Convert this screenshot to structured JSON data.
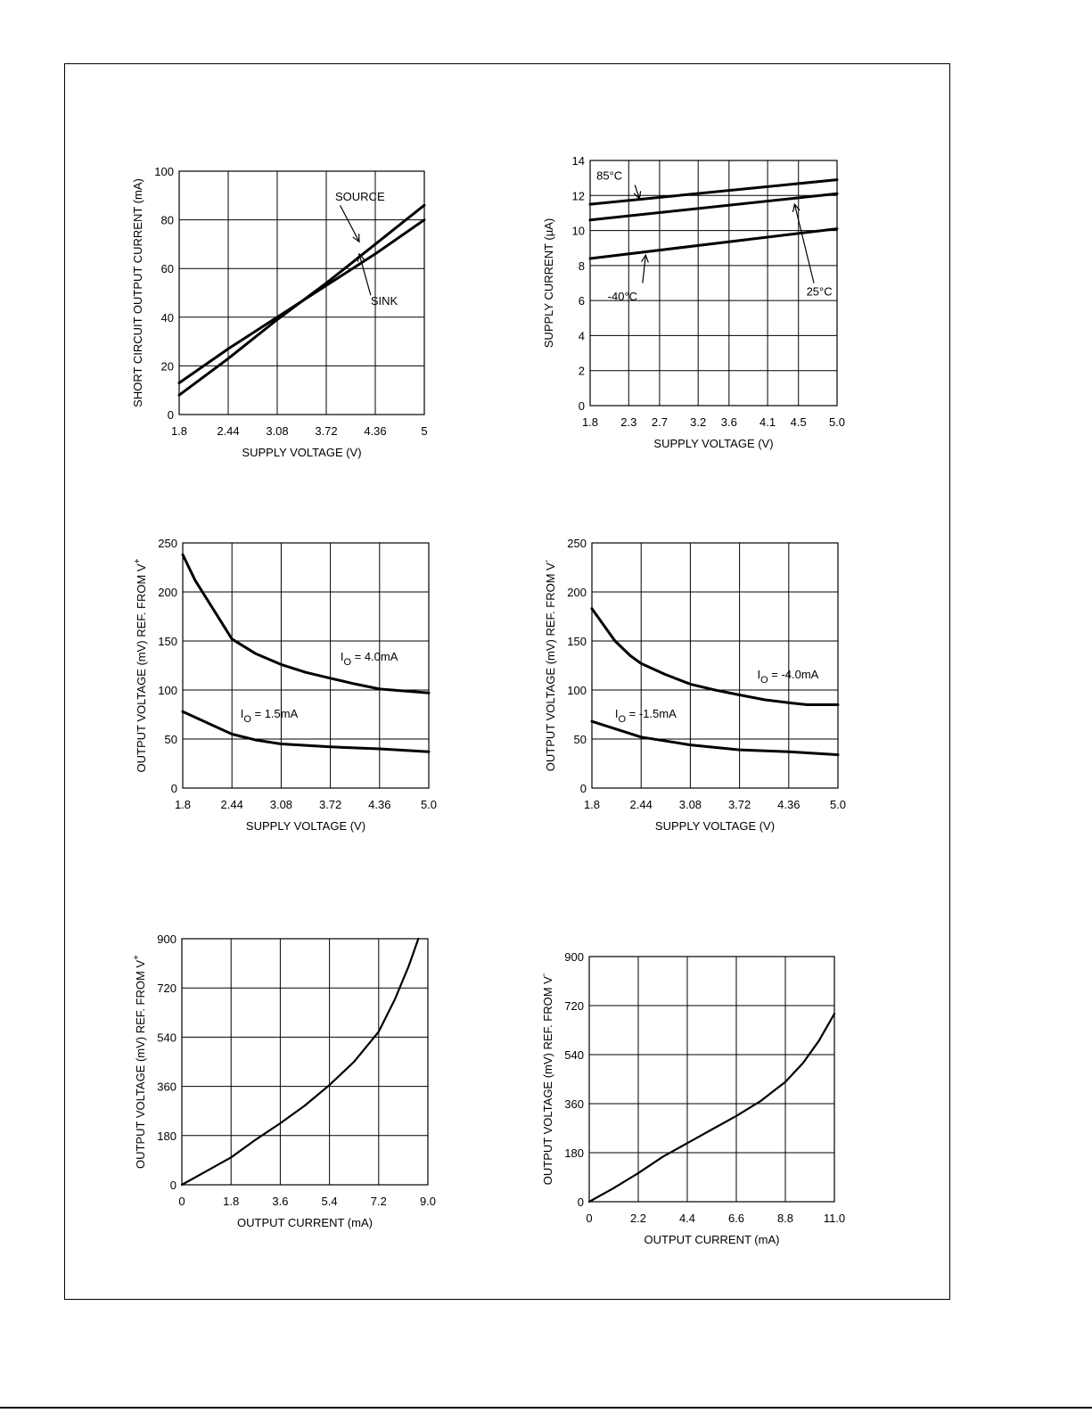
{
  "chart_data": [
    {
      "id": "c1",
      "type": "line",
      "xlabel": "SUPPLY VOLTAGE (V)",
      "ylabel": "SHORT CIRCUIT OUTPUT CURRENT (mA)",
      "x_ticks": [
        1.8,
        2.44,
        3.08,
        3.72,
        4.36,
        5
      ],
      "x_tick_labels": [
        "1.8",
        "2.44",
        "3.08",
        "3.72",
        "4.36",
        "5"
      ],
      "y_ticks": [
        0,
        20,
        40,
        60,
        80,
        100
      ],
      "y_tick_labels": [
        "0",
        "20",
        "40",
        "60",
        "80",
        "100"
      ],
      "xlim": [
        1.8,
        5
      ],
      "ylim": [
        0,
        100
      ],
      "grid": true,
      "series": [
        {
          "name": "SOURCE",
          "points": [
            [
              1.8,
              8
            ],
            [
              2.44,
              23
            ],
            [
              3.08,
              39
            ],
            [
              3.72,
              54
            ],
            [
              4.36,
              70
            ],
            [
              5,
              86
            ]
          ]
        },
        {
          "name": "SINK",
          "points": [
            [
              1.8,
              13
            ],
            [
              2.44,
              27
            ],
            [
              3.08,
              40
            ],
            [
              3.72,
              53
            ],
            [
              4.36,
              66
            ],
            [
              5,
              80
            ]
          ]
        }
      ],
      "annotations": [
        {
          "text": "SOURCE",
          "tx": 4.16,
          "ty": 88,
          "ax": 3.9,
          "ay": 86,
          "hx": 4.15,
          "hy": 71,
          "anchor": "middle"
        },
        {
          "text": "SINK",
          "tx": 4.3,
          "ty": 45,
          "ax": 4.3,
          "ay": 49,
          "hx": 4.15,
          "hy": 66,
          "anchor": "start"
        }
      ]
    },
    {
      "id": "c2",
      "type": "line",
      "xlabel": "SUPPLY VOLTAGE (V)",
      "ylabel": "SUPPLY CURRENT (µA)",
      "x_ticks": [
        1.8,
        2.3,
        2.7,
        3.2,
        3.6,
        4.1,
        4.5,
        5.0
      ],
      "x_tick_labels": [
        "1.8",
        "2.3",
        "2.7",
        "3.2",
        "3.6",
        "4.1",
        "4.5",
        "5.0"
      ],
      "y_ticks": [
        0,
        2,
        4,
        6,
        8,
        10,
        12,
        14
      ],
      "y_tick_labels": [
        "0",
        "2",
        "4",
        "6",
        "8",
        "10",
        "12",
        "14"
      ],
      "xlim": [
        1.8,
        5.0
      ],
      "ylim": [
        0,
        14
      ],
      "grid": true,
      "series": [
        {
          "name": "85°C",
          "points": [
            [
              1.8,
              11.5
            ],
            [
              5.0,
              12.9
            ]
          ]
        },
        {
          "name": "25°C",
          "points": [
            [
              1.8,
              10.6
            ],
            [
              5.0,
              12.1
            ]
          ]
        },
        {
          "name": "-40°C",
          "points": [
            [
              1.8,
              8.4
            ],
            [
              5.0,
              10.1
            ]
          ]
        }
      ],
      "annotations": [
        {
          "text": "85°C",
          "tx": 2.05,
          "ty": 12.9,
          "ax": 2.38,
          "ay": 12.6,
          "hx": 2.44,
          "hy": 11.8,
          "anchor": "middle"
        },
        {
          "text": "25°C",
          "tx": 4.77,
          "ty": 6.3,
          "ax": 4.7,
          "ay": 7.0,
          "hx": 4.45,
          "hy": 11.5,
          "anchor": "middle"
        },
        {
          "text": "-40°C",
          "tx": 2.22,
          "ty": 6.0,
          "ax": 2.48,
          "ay": 7.0,
          "hx": 2.52,
          "hy": 8.6,
          "anchor": "middle"
        }
      ]
    },
    {
      "id": "c3",
      "type": "line",
      "xlabel": "SUPPLY VOLTAGE (V)",
      "ylabel": "OUTPUT VOLTAGE (mV) REF. FROM V",
      "ylabel_sup": "+",
      "x_ticks": [
        1.8,
        2.44,
        3.08,
        3.72,
        4.36,
        5.0
      ],
      "x_tick_labels": [
        "1.8",
        "2.44",
        "3.08",
        "3.72",
        "4.36",
        "5.0"
      ],
      "y_ticks": [
        0,
        50,
        100,
        150,
        200,
        250
      ],
      "y_tick_labels": [
        "0",
        "50",
        "100",
        "150",
        "200",
        "250"
      ],
      "xlim": [
        1.8,
        5.0
      ],
      "ylim": [
        0,
        250
      ],
      "grid": true,
      "series": [
        {
          "name": "I_O = 4.0mA",
          "points": [
            [
              1.8,
              238
            ],
            [
              1.96,
              212
            ],
            [
              2.2,
              182
            ],
            [
              2.44,
              152
            ],
            [
              2.75,
              137
            ],
            [
              3.08,
              126
            ],
            [
              3.4,
              118
            ],
            [
              3.72,
              112
            ],
            [
              4.05,
              106
            ],
            [
              4.36,
              101
            ],
            [
              5.0,
              97
            ]
          ]
        },
        {
          "name": "I_O = 1.5mA",
          "points": [
            [
              1.8,
              78
            ],
            [
              2.44,
              55
            ],
            [
              2.75,
              49
            ],
            [
              3.08,
              45
            ],
            [
              3.72,
              42
            ],
            [
              4.36,
              40
            ],
            [
              5.0,
              37
            ]
          ]
        }
      ],
      "annotations": [
        {
          "text": "I",
          "sub": "O",
          "rest": " = 4.0mA",
          "tx": 3.85,
          "ty": 130,
          "anchor": "start"
        },
        {
          "text": "I",
          "sub": "O",
          "rest": " = 1.5mA",
          "tx": 2.55,
          "ty": 72,
          "anchor": "start"
        }
      ]
    },
    {
      "id": "c4",
      "type": "line",
      "xlabel": "SUPPLY VOLTAGE (V)",
      "ylabel": "OUTPUT VOLTAGE (mV) REF. FROM V",
      "ylabel_sup": "-",
      "x_ticks": [
        1.8,
        2.44,
        3.08,
        3.72,
        4.36,
        5.0
      ],
      "x_tick_labels": [
        "1.8",
        "2.44",
        "3.08",
        "3.72",
        "4.36",
        "5.0"
      ],
      "y_ticks": [
        0,
        50,
        100,
        150,
        200,
        250
      ],
      "y_tick_labels": [
        "0",
        "50",
        "100",
        "150",
        "200",
        "250"
      ],
      "xlim": [
        1.8,
        5.0
      ],
      "ylim": [
        0,
        250
      ],
      "grid": true,
      "series": [
        {
          "name": "I_O = -4.0mA",
          "points": [
            [
              1.8,
              183
            ],
            [
              2.1,
              150
            ],
            [
              2.3,
              135
            ],
            [
              2.44,
              127
            ],
            [
              2.75,
              116
            ],
            [
              3.08,
              106
            ],
            [
              3.4,
              100
            ],
            [
              3.72,
              95
            ],
            [
              4.05,
              90
            ],
            [
              4.36,
              87
            ],
            [
              4.6,
              85
            ],
            [
              5.0,
              85
            ]
          ]
        },
        {
          "name": "I_O = -1.5mA",
          "points": [
            [
              1.8,
              68
            ],
            [
              2.44,
              52
            ],
            [
              3.08,
              44
            ],
            [
              3.72,
              39
            ],
            [
              4.36,
              37
            ],
            [
              5.0,
              34
            ]
          ]
        }
      ],
      "annotations": [
        {
          "text": "I",
          "sub": "O",
          "rest": " = -4.0mA",
          "tx": 3.95,
          "ty": 112,
          "anchor": "start"
        },
        {
          "text": "I",
          "sub": "O",
          "rest": " = -1.5mA",
          "tx": 2.1,
          "ty": 72,
          "anchor": "start"
        }
      ]
    },
    {
      "id": "c5",
      "type": "line",
      "xlabel": "OUTPUT CURRENT (mA)",
      "ylabel": "OUTPUT VOLTAGE (mV) REF. FROM V",
      "ylabel_sup": "+",
      "x_ticks": [
        0,
        1.8,
        3.6,
        5.4,
        7.2,
        9.0
      ],
      "x_tick_labels": [
        "0",
        "1.8",
        "3.6",
        "5.4",
        "7.2",
        "9.0"
      ],
      "y_ticks": [
        0,
        180,
        360,
        540,
        720,
        900
      ],
      "y_tick_labels": [
        "0",
        "180",
        "360",
        "540",
        "720",
        "900"
      ],
      "xlim": [
        0,
        9.0
      ],
      "ylim": [
        0,
        900
      ],
      "grid": true,
      "series": [
        {
          "name": "",
          "points": [
            [
              0,
              0
            ],
            [
              0.9,
              50
            ],
            [
              1.8,
              100
            ],
            [
              2.7,
              165
            ],
            [
              3.6,
              225
            ],
            [
              4.5,
              290
            ],
            [
              5.4,
              365
            ],
            [
              6.3,
              450
            ],
            [
              7.2,
              560
            ],
            [
              7.8,
              680
            ],
            [
              8.3,
              800
            ],
            [
              8.65,
              900
            ]
          ]
        }
      ],
      "annotations": []
    },
    {
      "id": "c6",
      "type": "line",
      "xlabel": "OUTPUT CURRENT (mA)",
      "ylabel": "OUTPUT VOLTAGE (mV) REF. FROM V",
      "ylabel_sup": "-",
      "x_ticks": [
        0,
        2.2,
        4.4,
        6.6,
        8.8,
        11.0
      ],
      "x_tick_labels": [
        "0",
        "2.2",
        "4.4",
        "6.6",
        "8.8",
        "11.0"
      ],
      "y_ticks": [
        0,
        180,
        360,
        540,
        720,
        900
      ],
      "y_tick_labels": [
        "0",
        "180",
        "360",
        "540",
        "720",
        "900"
      ],
      "xlim": [
        0,
        11.0
      ],
      "ylim": [
        0,
        900
      ],
      "grid": true,
      "series": [
        {
          "name": "",
          "points": [
            [
              0,
              0
            ],
            [
              1.1,
              50
            ],
            [
              2.2,
              105
            ],
            [
              3.3,
              165
            ],
            [
              4.4,
              215
            ],
            [
              5.5,
              265
            ],
            [
              6.6,
              315
            ],
            [
              7.7,
              370
            ],
            [
              8.8,
              440
            ],
            [
              9.6,
              510
            ],
            [
              10.3,
              590
            ],
            [
              11.0,
              690
            ]
          ]
        }
      ],
      "annotations": []
    }
  ]
}
